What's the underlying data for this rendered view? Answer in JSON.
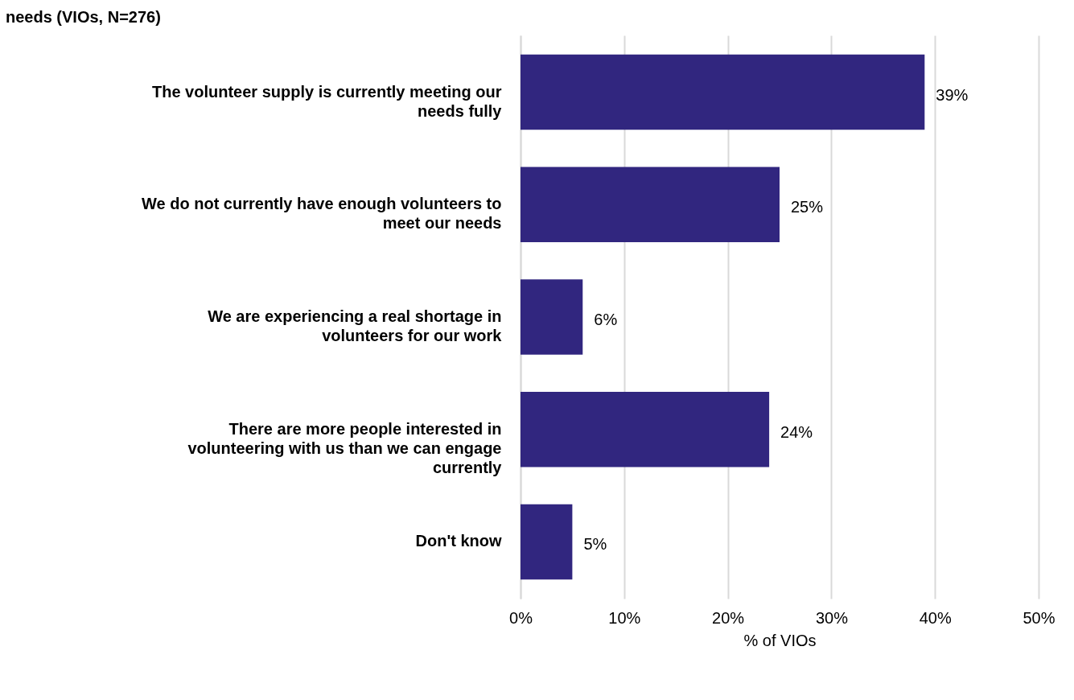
{
  "chart_data": {
    "type": "bar",
    "orientation": "horizontal",
    "title": "needs (VIOs, N=276)",
    "xlabel": "% of VIOs",
    "categories": [
      "The volunteer supply is currently meeting our needs fully",
      "We do not currently have enough volunteers to meet our needs",
      "We are experiencing a real shortage in volunteers for our work",
      "There are more people interested in volunteering with us than we can engage currently",
      "Don't know"
    ],
    "values": [
      39,
      25,
      6,
      24,
      5
    ],
    "value_labels": [
      "39%",
      "25%",
      "6%",
      "24%",
      "5%"
    ],
    "color": "#31267f",
    "xlim": [
      0,
      50
    ],
    "xticks": [
      {
        "value": 0,
        "label": "0%"
      },
      {
        "value": 10,
        "label": "10%"
      },
      {
        "value": 20,
        "label": "20%"
      },
      {
        "value": 30,
        "label": "30%"
      },
      {
        "value": 40,
        "label": "40%"
      },
      {
        "value": 50,
        "label": "50%"
      }
    ],
    "grid": "x"
  }
}
